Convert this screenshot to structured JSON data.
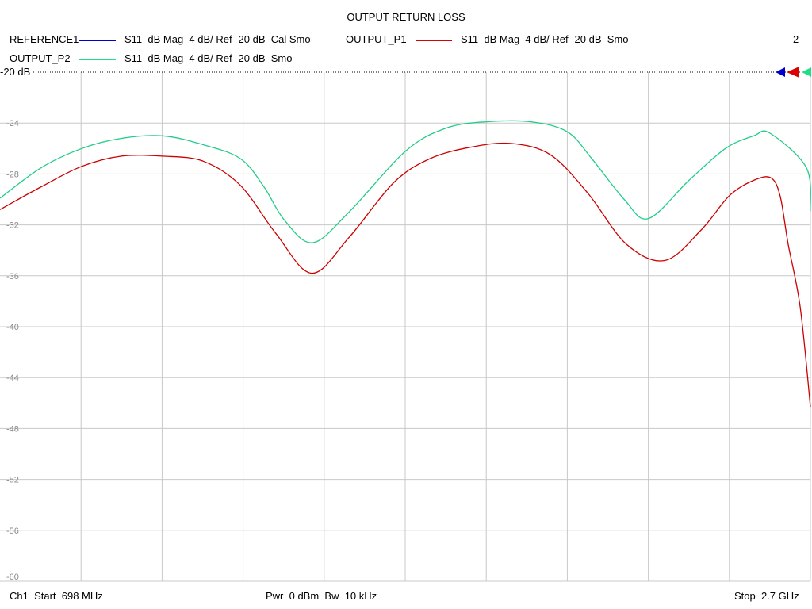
{
  "chart_data": {
    "type": "line",
    "title": "OUTPUT RETURN LOSS",
    "xlim": [
      698,
      2700
    ],
    "x_unit": "MHz",
    "ylim": [
      -60,
      -20
    ],
    "y_ticks": [
      -20,
      -24,
      -28,
      -32,
      -36,
      -40,
      -44,
      -48,
      -52,
      -56,
      -60
    ],
    "y_tick_labels": [
      "-20 dB",
      "-24",
      "-28",
      "-32",
      "-36",
      "-40",
      "-44",
      "-48",
      "-52",
      "-56",
      "-60"
    ],
    "grid": true,
    "legend": [
      {
        "name": "REFERENCE1",
        "desc": "S11  dB Mag  4 dB/ Ref -20 dB  Cal Smo",
        "color": "#0000cc"
      },
      {
        "name": "OUTPUT_P1",
        "desc": "S11  dB Mag  4 dB/ Ref -20 dB  Smo",
        "color": "#dd0000"
      },
      {
        "name": "OUTPUT_P2",
        "desc": "S11  dB Mag  4 dB/ Ref -20 dB  Smo",
        "color": "#22dd88"
      }
    ],
    "series": [
      {
        "name": "OUTPUT_P1",
        "color": "#cc0000",
        "x": [
          698,
          800,
          900,
          998,
          1100,
          1200,
          1292,
          1380,
          1468,
          1560,
          1670,
          1760,
          1860,
          1960,
          2058,
          2150,
          2245,
          2340,
          2430,
          2500,
          2560,
          2602,
          2625,
          2645,
          2675,
          2700
        ],
        "y": [
          -30.8,
          -29.0,
          -27.4,
          -26.6,
          -26.6,
          -27.0,
          -28.9,
          -32.7,
          -35.8,
          -33.0,
          -28.7,
          -26.8,
          -25.9,
          -25.6,
          -26.5,
          -29.5,
          -33.5,
          -34.8,
          -32.4,
          -29.7,
          -28.5,
          -28.3,
          -29.7,
          -33.5,
          -38.5,
          -46.3
        ]
      },
      {
        "name": "OUTPUT_P2",
        "color": "#22cc88",
        "x": [
          698,
          800,
          900,
          998,
          1100,
          1200,
          1292,
          1350,
          1400,
          1470,
          1560,
          1700,
          1800,
          1900,
          2010,
          2100,
          2160,
          2240,
          2300,
          2400,
          2490,
          2560,
          2600,
          2690,
          2700
        ],
        "y": [
          -29.9,
          -27.5,
          -26.0,
          -25.2,
          -25.0,
          -25.7,
          -26.8,
          -29.0,
          -31.6,
          -33.4,
          -31.0,
          -26.2,
          -24.4,
          -23.9,
          -23.9,
          -24.7,
          -26.8,
          -30.0,
          -31.5,
          -28.5,
          -26.0,
          -25.0,
          -24.8,
          -27.5,
          -30.9
        ]
      },
      {
        "name": "REFERENCE1",
        "color": "#0000cc",
        "x": [],
        "y": []
      }
    ]
  },
  "channel_number": "2",
  "footer": {
    "start": "Ch1  Start  698 MHz",
    "power": "Pwr  0 dBm  Bw  10 kHz",
    "stop": "Stop  2.7 GHz"
  },
  "colors": {
    "grid": "#c8c8c8",
    "ref_marker_blue": "#0000cc",
    "ref_marker_red": "#dd0000",
    "ref_marker_green": "#22dd88"
  }
}
